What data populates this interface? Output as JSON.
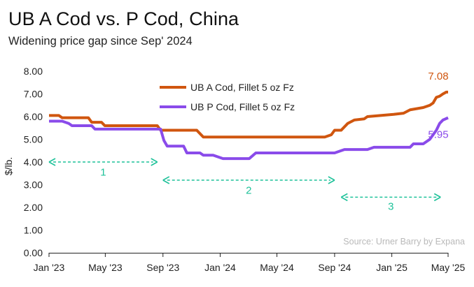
{
  "title": "UB A Cod vs. P Cod, China",
  "subtitle": "Widening price gap since Sep' 2024",
  "source": "Source: Urner Barry by Expana",
  "colors": {
    "a_cod": "#d0560f",
    "p_cod": "#8a4bea",
    "annotation": "#1fc29a",
    "axis": "#222222"
  },
  "chart_data": {
    "type": "line",
    "title": "UB A Cod vs. P Cod, China",
    "subtitle": "Widening price gap since Sep' 2024",
    "xlabel": "",
    "ylabel": "$/lb.",
    "ylim": [
      0,
      8
    ],
    "yticks": [
      0,
      1,
      2,
      3,
      4,
      5,
      6,
      7,
      8
    ],
    "ytick_labels": [
      "0.00",
      "1.00",
      "2.00",
      "3.00",
      "4.00",
      "5.00",
      "6.00",
      "7.00",
      "8.00"
    ],
    "xlim": [
      "2023-01-01",
      "2025-05-01"
    ],
    "xticks": [
      "2023-01-01",
      "2023-05-01",
      "2023-09-01",
      "2024-01-01",
      "2024-05-01",
      "2024-09-01",
      "2025-01-01",
      "2025-05-01"
    ],
    "xtick_labels": [
      "Jan '23",
      "May '23",
      "Sep '23",
      "Jan '24",
      "May '24",
      "Sep '24",
      "Jan '25",
      "May '25"
    ],
    "grid": false,
    "legend_position": "top-center",
    "series": [
      {
        "name": "UB A Cod, Fillet 5 oz Fz",
        "color": "#d0560f",
        "end_label": "7.08",
        "points": [
          [
            "2023-01-01",
            6.05
          ],
          [
            "2023-01-22",
            6.05
          ],
          [
            "2023-01-29",
            5.95
          ],
          [
            "2023-03-26",
            5.95
          ],
          [
            "2023-04-02",
            5.75
          ],
          [
            "2023-04-23",
            5.75
          ],
          [
            "2023-04-30",
            5.6
          ],
          [
            "2023-08-20",
            5.6
          ],
          [
            "2023-08-27",
            5.4
          ],
          [
            "2023-11-12",
            5.4
          ],
          [
            "2023-11-26",
            5.1
          ],
          [
            "2024-08-11",
            5.1
          ],
          [
            "2024-08-25",
            5.2
          ],
          [
            "2024-09-01",
            5.4
          ],
          [
            "2024-09-15",
            5.4
          ],
          [
            "2024-09-29",
            5.7
          ],
          [
            "2024-10-13",
            5.85
          ],
          [
            "2024-11-03",
            5.9
          ],
          [
            "2024-11-10",
            6.0
          ],
          [
            "2024-12-08",
            6.05
          ],
          [
            "2025-01-05",
            6.1
          ],
          [
            "2025-01-26",
            6.15
          ],
          [
            "2025-02-09",
            6.3
          ],
          [
            "2025-03-09",
            6.4
          ],
          [
            "2025-03-23",
            6.5
          ],
          [
            "2025-03-30",
            6.6
          ],
          [
            "2025-04-06",
            6.85
          ],
          [
            "2025-04-13",
            6.9
          ],
          [
            "2025-04-20",
            7.0
          ],
          [
            "2025-04-27",
            7.08
          ],
          [
            "2025-05-01",
            7.08
          ]
        ]
      },
      {
        "name": "UB P Cod, Fillet 5 oz Fz",
        "color": "#8a4bea",
        "end_label": "5.95",
        "points": [
          [
            "2023-01-01",
            5.8
          ],
          [
            "2023-01-29",
            5.8
          ],
          [
            "2023-02-12",
            5.7
          ],
          [
            "2023-02-19",
            5.6
          ],
          [
            "2023-04-02",
            5.6
          ],
          [
            "2023-04-09",
            5.45
          ],
          [
            "2023-08-27",
            5.45
          ],
          [
            "2023-09-03",
            4.95
          ],
          [
            "2023-09-10",
            4.7
          ],
          [
            "2023-10-15",
            4.7
          ],
          [
            "2023-10-22",
            4.4
          ],
          [
            "2023-11-19",
            4.4
          ],
          [
            "2023-11-26",
            4.3
          ],
          [
            "2023-12-17",
            4.3
          ],
          [
            "2024-01-07",
            4.15
          ],
          [
            "2024-03-03",
            4.15
          ],
          [
            "2024-03-17",
            4.4
          ],
          [
            "2024-09-01",
            4.4
          ],
          [
            "2024-09-15",
            4.5
          ],
          [
            "2024-09-22",
            4.55
          ],
          [
            "2024-11-10",
            4.55
          ],
          [
            "2024-11-24",
            4.65
          ],
          [
            "2025-02-09",
            4.65
          ],
          [
            "2025-02-16",
            4.8
          ],
          [
            "2025-03-09",
            4.8
          ],
          [
            "2025-03-16",
            4.9
          ],
          [
            "2025-03-23",
            5.0
          ],
          [
            "2025-04-06",
            5.4
          ],
          [
            "2025-04-13",
            5.7
          ],
          [
            "2025-04-20",
            5.85
          ],
          [
            "2025-05-01",
            5.95
          ]
        ]
      }
    ],
    "annotations": [
      {
        "label": "1",
        "x_start": "2023-01-01",
        "x_end": "2023-08-20",
        "y": 4.0,
        "label_y": 3.4
      },
      {
        "label": "2",
        "x_start": "2023-09-01",
        "x_end": "2024-09-01",
        "y": 3.2,
        "label_y": 2.6
      },
      {
        "label": "3",
        "x_start": "2024-09-15",
        "x_end": "2025-04-15",
        "y": 2.45,
        "label_y": 1.9
      }
    ]
  }
}
